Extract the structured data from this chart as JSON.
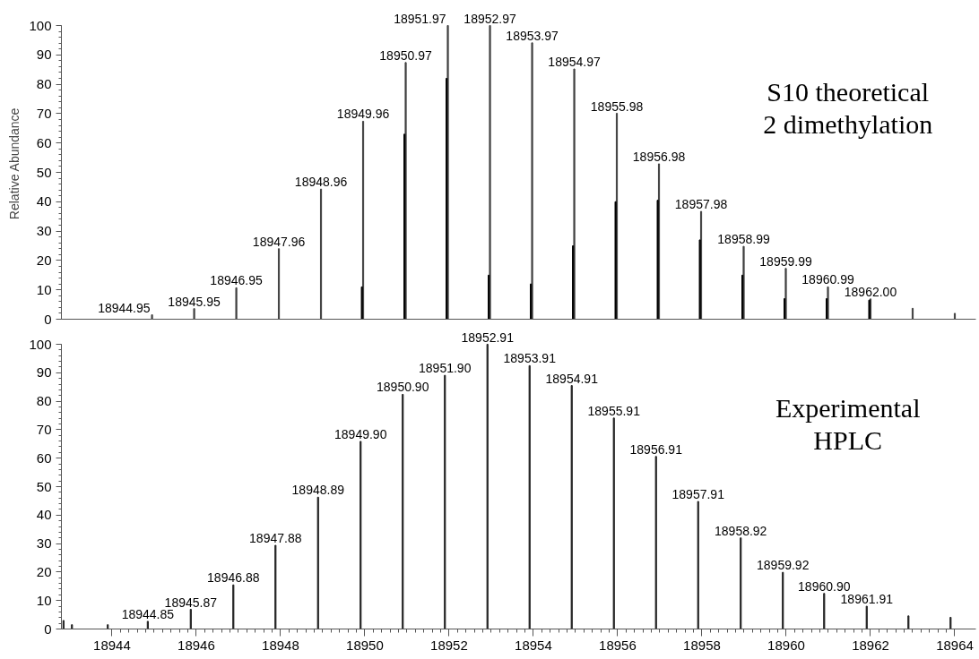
{
  "chart_data": [
    {
      "type": "bar",
      "ylabel": "Relative Abundance",
      "xlim": [
        18942.8,
        18964.5
      ],
      "ylim": [
        0,
        100
      ],
      "yticks": [
        0,
        10,
        20,
        30,
        40,
        50,
        60,
        70,
        80,
        90,
        100
      ],
      "tick_labels": "y",
      "series": [
        {
          "color": "#404040",
          "x": [
            18944.95,
            18945.95,
            18946.95,
            18947.96,
            18948.96,
            18949.96,
            18950.97,
            18951.97,
            18952.97,
            18953.97,
            18954.97,
            18955.98,
            18956.98,
            18957.98,
            18958.99,
            18959.99,
            18960.99,
            18962.0,
            18963.0,
            18964.0
          ],
          "values": [
            1.5,
            3.6,
            10.7,
            24,
            44.3,
            67.4,
            87.4,
            100,
            100,
            94.1,
            85.2,
            70.1,
            52.9,
            36.7,
            24.8,
            17.3,
            11,
            6.9,
            3.7,
            2
          ]
        },
        {
          "color": "#000000",
          "x": [
            18949.93,
            18950.94,
            18951.94,
            18952.94,
            18953.94,
            18954.94,
            18955.95,
            18956.95,
            18957.95,
            18958.96,
            18959.96,
            18960.96,
            18961.97
          ],
          "values": [
            11,
            63,
            82,
            15,
            12,
            25,
            40,
            40.5,
            27,
            15,
            7,
            7,
            6.5
          ]
        }
      ],
      "annotations": [
        "S10 theoretical\n2 dimethylation",
        {
          "text": "18944.95",
          "x": 18944.95,
          "y": 1.5
        },
        {
          "text": "18945.95",
          "x": 18945.95,
          "y": 3.6
        },
        {
          "text": "18946.95",
          "x": 18946.95,
          "y": 10.7
        },
        {
          "text": "18947.96",
          "x": 18947.96,
          "y": 24
        },
        {
          "text": "18948.96",
          "x": 18948.96,
          "y": 44.3
        },
        {
          "text": "18949.96",
          "x": 18949.96,
          "y": 67.4
        },
        {
          "text": "18950.97",
          "x": 18950.97,
          "y": 87.4
        },
        {
          "text": "18951.97",
          "x": 18951.97,
          "y": 100
        },
        {
          "text": "18952.97",
          "x": 18952.97,
          "y": 100
        },
        {
          "text": "18953.97",
          "x": 18953.97,
          "y": 94.1
        },
        {
          "text": "18954.97",
          "x": 18954.97,
          "y": 85.2
        },
        {
          "text": "18955.98",
          "x": 18955.98,
          "y": 70.1
        },
        {
          "text": "18956.98",
          "x": 18956.98,
          "y": 52.9
        },
        {
          "text": "18957.98",
          "x": 18957.98,
          "y": 36.7
        },
        {
          "text": "18958.99",
          "x": 18958.99,
          "y": 24.8
        },
        {
          "text": "18959.99",
          "x": 18959.99,
          "y": 17.3
        },
        {
          "text": "18960.99",
          "x": 18960.99,
          "y": 11
        },
        {
          "text": "18962.00",
          "x": 18962.0,
          "y": 6.9
        }
      ]
    },
    {
      "type": "bar",
      "xlim": [
        18942.8,
        18964.5
      ],
      "xticks": [
        18944,
        18946,
        18948,
        18950,
        18952,
        18954,
        18956,
        18958,
        18960,
        18962,
        18964
      ],
      "ylim": [
        0,
        100
      ],
      "yticks": [
        0,
        10,
        20,
        30,
        40,
        50,
        60,
        70,
        80,
        90,
        100
      ],
      "series": [
        {
          "color": "#202020",
          "x": [
            18942.85,
            18943.05,
            18943.9,
            18944.85,
            18945.87,
            18946.88,
            18947.88,
            18948.89,
            18949.9,
            18950.9,
            18951.9,
            18952.91,
            18953.91,
            18954.91,
            18955.91,
            18956.91,
            18957.91,
            18958.92,
            18959.92,
            18960.9,
            18961.91,
            18962.9,
            18963.9
          ],
          "values": [
            3,
            1.5,
            1.5,
            2.7,
            6.9,
            15.5,
            29.4,
            46.3,
            65.9,
            82.4,
            89.1,
            100,
            92.5,
            85.5,
            74.1,
            60.6,
            44.8,
            32,
            19.9,
            12.5,
            8,
            4.6,
            4.1
          ]
        }
      ],
      "annotations": [
        "Experimental\nHPLC",
        {
          "text": "18944.85",
          "x": 18944.85,
          "y": 2.7
        },
        {
          "text": "18945.87",
          "x": 18945.87,
          "y": 6.9
        },
        {
          "text": "18946.88",
          "x": 18946.88,
          "y": 15.5
        },
        {
          "text": "18947.88",
          "x": 18947.88,
          "y": 29.4
        },
        {
          "text": "18948.89",
          "x": 18948.89,
          "y": 46.3
        },
        {
          "text": "18949.90",
          "x": 18949.9,
          "y": 65.9
        },
        {
          "text": "18950.90",
          "x": 18950.9,
          "y": 82.4
        },
        {
          "text": "18951.90",
          "x": 18951.9,
          "y": 89.1
        },
        {
          "text": "18952.91",
          "x": 18952.91,
          "y": 100
        },
        {
          "text": "18953.91",
          "x": 18953.91,
          "y": 92.5
        },
        {
          "text": "18954.91",
          "x": 18954.91,
          "y": 85.5
        },
        {
          "text": "18955.91",
          "x": 18955.91,
          "y": 74.1
        },
        {
          "text": "18956.91",
          "x": 18956.91,
          "y": 60.6
        },
        {
          "text": "18957.91",
          "x": 18957.91,
          "y": 44.8
        },
        {
          "text": "18958.92",
          "x": 18958.92,
          "y": 32
        },
        {
          "text": "18959.92",
          "x": 18959.92,
          "y": 19.9
        },
        {
          "text": "18960.90",
          "x": 18960.9,
          "y": 12.5
        },
        {
          "text": "18961.91",
          "x": 18961.91,
          "y": 8
        }
      ]
    }
  ]
}
